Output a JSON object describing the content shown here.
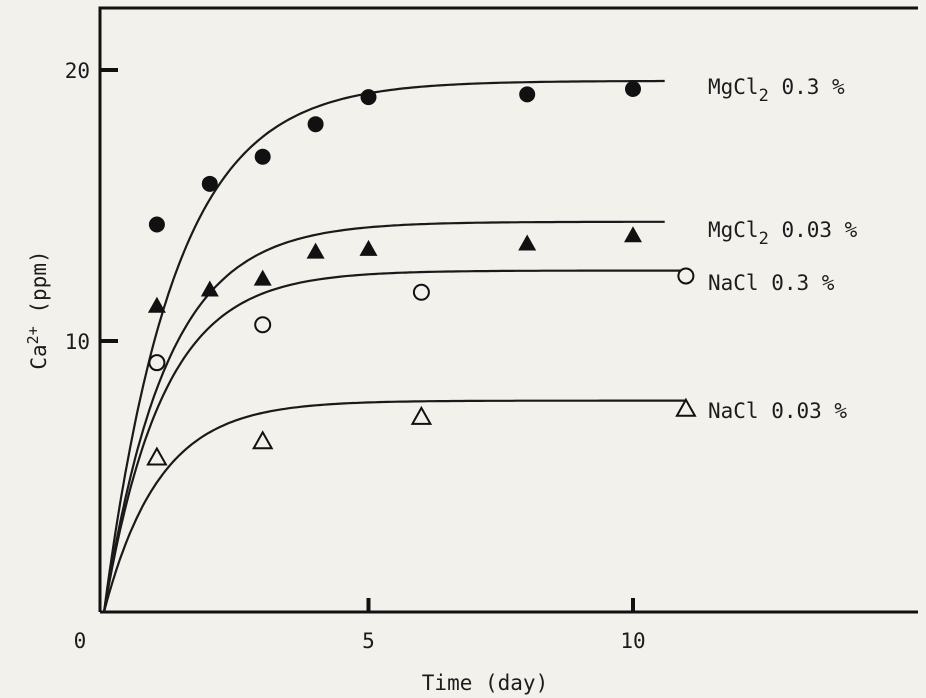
{
  "chart_data": {
    "type": "line",
    "xlabel": "Time (day)",
    "ylabel": "Ca2+ (ppm)",
    "xlim": [
      0,
      15.5
    ],
    "ylim": [
      0,
      22
    ],
    "x_ticks": [
      0,
      5,
      10
    ],
    "y_ticks": [
      10,
      20
    ],
    "grid": false,
    "legend": "labels at line ends (right)",
    "series": [
      {
        "label_parts": [
          {
            "text": "MgCl"
          },
          {
            "text": "2",
            "sub": true
          },
          {
            "text": " 0.3 %"
          }
        ],
        "marker": "filled-circle",
        "points": [
          [
            1,
            14.3
          ],
          [
            2,
            15.8
          ],
          [
            3,
            16.8
          ],
          [
            4,
            18.0
          ],
          [
            5,
            19.0
          ],
          [
            8,
            19.1
          ],
          [
            10,
            19.3
          ]
        ],
        "fit": {
          "a": 19.6,
          "b": 0.75
        },
        "fit_to": 10.6
      },
      {
        "label_parts": [
          {
            "text": "MgCl"
          },
          {
            "text": "2",
            "sub": true
          },
          {
            "text": " 0.03 %"
          }
        ],
        "marker": "filled-triangle",
        "points": [
          [
            1,
            11.3
          ],
          [
            2,
            11.9
          ],
          [
            3,
            12.3
          ],
          [
            4,
            13.3
          ],
          [
            5,
            13.4
          ],
          [
            8,
            13.6
          ],
          [
            10,
            13.9
          ]
        ],
        "fit": {
          "a": 14.4,
          "b": 0.85
        },
        "fit_to": 10.6
      },
      {
        "label_parts": [
          {
            "text": "NaCl  0.3 %"
          }
        ],
        "marker": "open-circle",
        "points": [
          [
            1,
            9.2
          ],
          [
            3,
            10.6
          ],
          [
            6,
            11.8
          ],
          [
            11,
            12.4
          ]
        ],
        "fit": {
          "a": 12.6,
          "b": 0.9
        },
        "fit_to": 11
      },
      {
        "label_parts": [
          {
            "text": "NaCl 0.03 %"
          }
        ],
        "marker": "open-triangle",
        "points": [
          [
            1,
            5.7
          ],
          [
            3,
            6.3
          ],
          [
            6,
            7.2
          ],
          [
            11,
            7.5
          ]
        ],
        "fit": {
          "a": 7.8,
          "b": 0.95
        },
        "fit_to": 11
      }
    ]
  }
}
